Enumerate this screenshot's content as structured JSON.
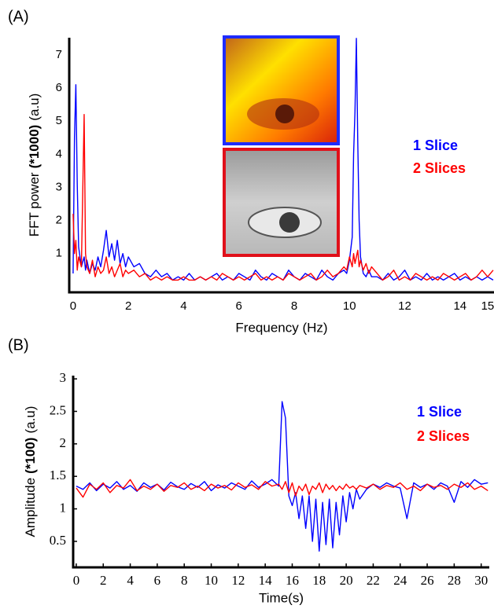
{
  "chart_data": [
    {
      "type": "line",
      "panel_label": "(A)",
      "xlabel": "Frequency (Hz)",
      "ylabel": [
        "FFT power",
        "(*1000)",
        "(a.u)"
      ],
      "xlim": [
        -0.14,
        15.23
      ],
      "ylim": [
        -0.17,
        7.52
      ],
      "xticks": [
        0,
        2,
        4,
        6,
        8,
        10,
        12,
        14,
        15
      ],
      "yticks": [
        1,
        2,
        3,
        4,
        5,
        6,
        7
      ],
      "grid": false,
      "legend": "right",
      "x": [
        0,
        0.05,
        0.1,
        0.15,
        0.2,
        0.3,
        0.4,
        0.45,
        0.5,
        0.6,
        0.7,
        0.8,
        0.9,
        1.0,
        1.1,
        1.2,
        1.3,
        1.4,
        1.5,
        1.6,
        1.7,
        1.8,
        1.9,
        2.0,
        2.2,
        2.4,
        2.6,
        2.8,
        3.0,
        3.2,
        3.4,
        3.6,
        3.8,
        4.0,
        4.2,
        4.4,
        4.6,
        4.8,
        5.0,
        5.2,
        5.4,
        5.6,
        5.8,
        6.0,
        6.2,
        6.4,
        6.6,
        6.8,
        7.0,
        7.2,
        7.4,
        7.6,
        7.8,
        8.0,
        8.2,
        8.4,
        8.6,
        8.8,
        9.0,
        9.2,
        9.4,
        9.6,
        9.8,
        9.9,
        10.0,
        10.1,
        10.15,
        10.2,
        10.25,
        10.3,
        10.35,
        10.4,
        10.5,
        10.6,
        10.7,
        10.8,
        11.0,
        11.2,
        11.4,
        11.6,
        11.8,
        12.0,
        12.2,
        12.4,
        12.6,
        12.8,
        13.0,
        13.2,
        13.4,
        13.6,
        13.8,
        14.0,
        14.2,
        14.4,
        14.6,
        14.8,
        15.0,
        15.2
      ],
      "series": [
        {
          "name": "1 Slice",
          "color": "#0000ff",
          "values": [
            0.4,
            4.5,
            6.1,
            3.1,
            1.2,
            0.6,
            0.9,
            0.5,
            0.8,
            0.4,
            0.7,
            0.5,
            0.9,
            0.6,
            1.1,
            1.7,
            0.9,
            1.3,
            0.8,
            1.4,
            0.7,
            1.0,
            0.6,
            0.9,
            0.6,
            0.7,
            0.4,
            0.3,
            0.5,
            0.3,
            0.4,
            0.2,
            0.3,
            0.2,
            0.4,
            0.2,
            0.3,
            0.2,
            0.3,
            0.4,
            0.2,
            0.3,
            0.2,
            0.4,
            0.3,
            0.2,
            0.5,
            0.3,
            0.2,
            0.4,
            0.3,
            0.2,
            0.5,
            0.3,
            0.2,
            0.4,
            0.3,
            0.2,
            0.5,
            0.3,
            0.2,
            0.4,
            0.5,
            0.4,
            0.8,
            1.5,
            4.0,
            5.3,
            7.5,
            4.4,
            2.0,
            0.9,
            0.4,
            0.3,
            0.5,
            0.3,
            0.3,
            0.2,
            0.4,
            0.2,
            0.3,
            0.5,
            0.2,
            0.3,
            0.2,
            0.4,
            0.2,
            0.3,
            0.2,
            0.3,
            0.4,
            0.2,
            0.3,
            0.2,
            0.3,
            0.2,
            0.3,
            0.2
          ]
        },
        {
          "name": "2 Slices",
          "color": "#ff0000",
          "values": [
            2.2,
            1.0,
            1.4,
            0.5,
            0.9,
            0.6,
            5.2,
            1.0,
            0.6,
            0.4,
            0.8,
            0.3,
            0.6,
            0.4,
            0.5,
            0.9,
            0.4,
            0.6,
            0.3,
            0.5,
            0.7,
            0.3,
            0.5,
            0.4,
            0.5,
            0.3,
            0.4,
            0.2,
            0.3,
            0.2,
            0.3,
            0.2,
            0.2,
            0.3,
            0.2,
            0.2,
            0.3,
            0.2,
            0.3,
            0.2,
            0.4,
            0.3,
            0.2,
            0.3,
            0.2,
            0.3,
            0.4,
            0.2,
            0.3,
            0.2,
            0.3,
            0.2,
            0.4,
            0.3,
            0.2,
            0.3,
            0.4,
            0.2,
            0.3,
            0.5,
            0.3,
            0.4,
            0.6,
            0.5,
            0.9,
            0.6,
            1.0,
            0.7,
            0.9,
            1.1,
            0.6,
            0.8,
            0.5,
            0.7,
            0.4,
            0.6,
            0.4,
            0.2,
            0.3,
            0.5,
            0.2,
            0.3,
            0.2,
            0.4,
            0.3,
            0.2,
            0.3,
            0.2,
            0.4,
            0.3,
            0.2,
            0.3,
            0.4,
            0.2,
            0.3,
            0.5,
            0.3,
            0.5
          ]
        }
      ]
    },
    {
      "type": "line",
      "panel_label": "(B)",
      "xlabel": "Time(s)",
      "ylabel": [
        "Amplitude",
        "(*100)",
        "(a.u)"
      ],
      "xlim": [
        -0.23,
        30.6
      ],
      "ylim": [
        0.1,
        3.05
      ],
      "xticks": [
        0,
        2,
        4,
        6,
        8,
        10,
        12,
        14,
        16,
        18,
        20,
        22,
        24,
        26,
        28,
        30
      ],
      "yticks": [
        0.5,
        1,
        1.5,
        2,
        2.5,
        3
      ],
      "grid": false,
      "legend": "right",
      "x": [
        0,
        0.5,
        1,
        1.5,
        2,
        2.5,
        3,
        3.5,
        4,
        4.5,
        5,
        5.5,
        6,
        6.5,
        7,
        7.5,
        8,
        8.5,
        9,
        9.5,
        10,
        10.5,
        11,
        11.5,
        12,
        12.5,
        13,
        13.5,
        14,
        14.5,
        15,
        15.25,
        15.5,
        15.75,
        16,
        16.25,
        16.5,
        16.75,
        17,
        17.25,
        17.5,
        17.75,
        18,
        18.25,
        18.5,
        18.75,
        19,
        19.25,
        19.5,
        19.75,
        20,
        20.25,
        20.5,
        20.75,
        21,
        21.5,
        22,
        22.5,
        23,
        23.5,
        24,
        24.5,
        25,
        25.5,
        26,
        26.5,
        27,
        27.5,
        28,
        28.5,
        29,
        29.5,
        30,
        30.5
      ],
      "series": [
        {
          "name": "1 Slice",
          "color": "#0000ff",
          "values": [
            1.35,
            1.3,
            1.4,
            1.28,
            1.38,
            1.32,
            1.42,
            1.3,
            1.36,
            1.27,
            1.4,
            1.33,
            1.38,
            1.29,
            1.41,
            1.34,
            1.3,
            1.39,
            1.33,
            1.42,
            1.28,
            1.37,
            1.32,
            1.4,
            1.35,
            1.3,
            1.43,
            1.33,
            1.38,
            1.45,
            1.35,
            2.65,
            2.4,
            1.2,
            1.05,
            1.25,
            0.85,
            1.2,
            0.7,
            1.2,
            0.5,
            1.15,
            0.35,
            1.1,
            0.45,
            1.15,
            0.4,
            1.1,
            0.6,
            1.2,
            0.8,
            1.25,
            1.0,
            1.3,
            1.15,
            1.3,
            1.38,
            1.33,
            1.4,
            1.35,
            1.32,
            0.85,
            1.4,
            1.33,
            1.38,
            1.3,
            1.4,
            1.35,
            1.1,
            1.42,
            1.33,
            1.45,
            1.38,
            1.4
          ]
        },
        {
          "name": "2 Slices",
          "color": "#ff0000",
          "values": [
            1.32,
            1.18,
            1.38,
            1.3,
            1.4,
            1.25,
            1.36,
            1.32,
            1.45,
            1.28,
            1.35,
            1.3,
            1.38,
            1.27,
            1.36,
            1.33,
            1.4,
            1.3,
            1.35,
            1.28,
            1.38,
            1.32,
            1.36,
            1.29,
            1.4,
            1.33,
            1.37,
            1.3,
            1.42,
            1.35,
            1.38,
            1.3,
            1.42,
            1.25,
            1.4,
            1.2,
            1.35,
            1.28,
            1.38,
            1.22,
            1.35,
            1.3,
            1.4,
            1.25,
            1.38,
            1.3,
            1.36,
            1.28,
            1.35,
            1.3,
            1.38,
            1.32,
            1.35,
            1.3,
            1.36,
            1.32,
            1.38,
            1.3,
            1.36,
            1.33,
            1.4,
            1.3,
            1.35,
            1.28,
            1.38,
            1.33,
            1.36,
            1.3,
            1.38,
            1.33,
            1.4,
            1.3,
            1.35,
            1.28
          ]
        }
      ]
    }
  ]
}
